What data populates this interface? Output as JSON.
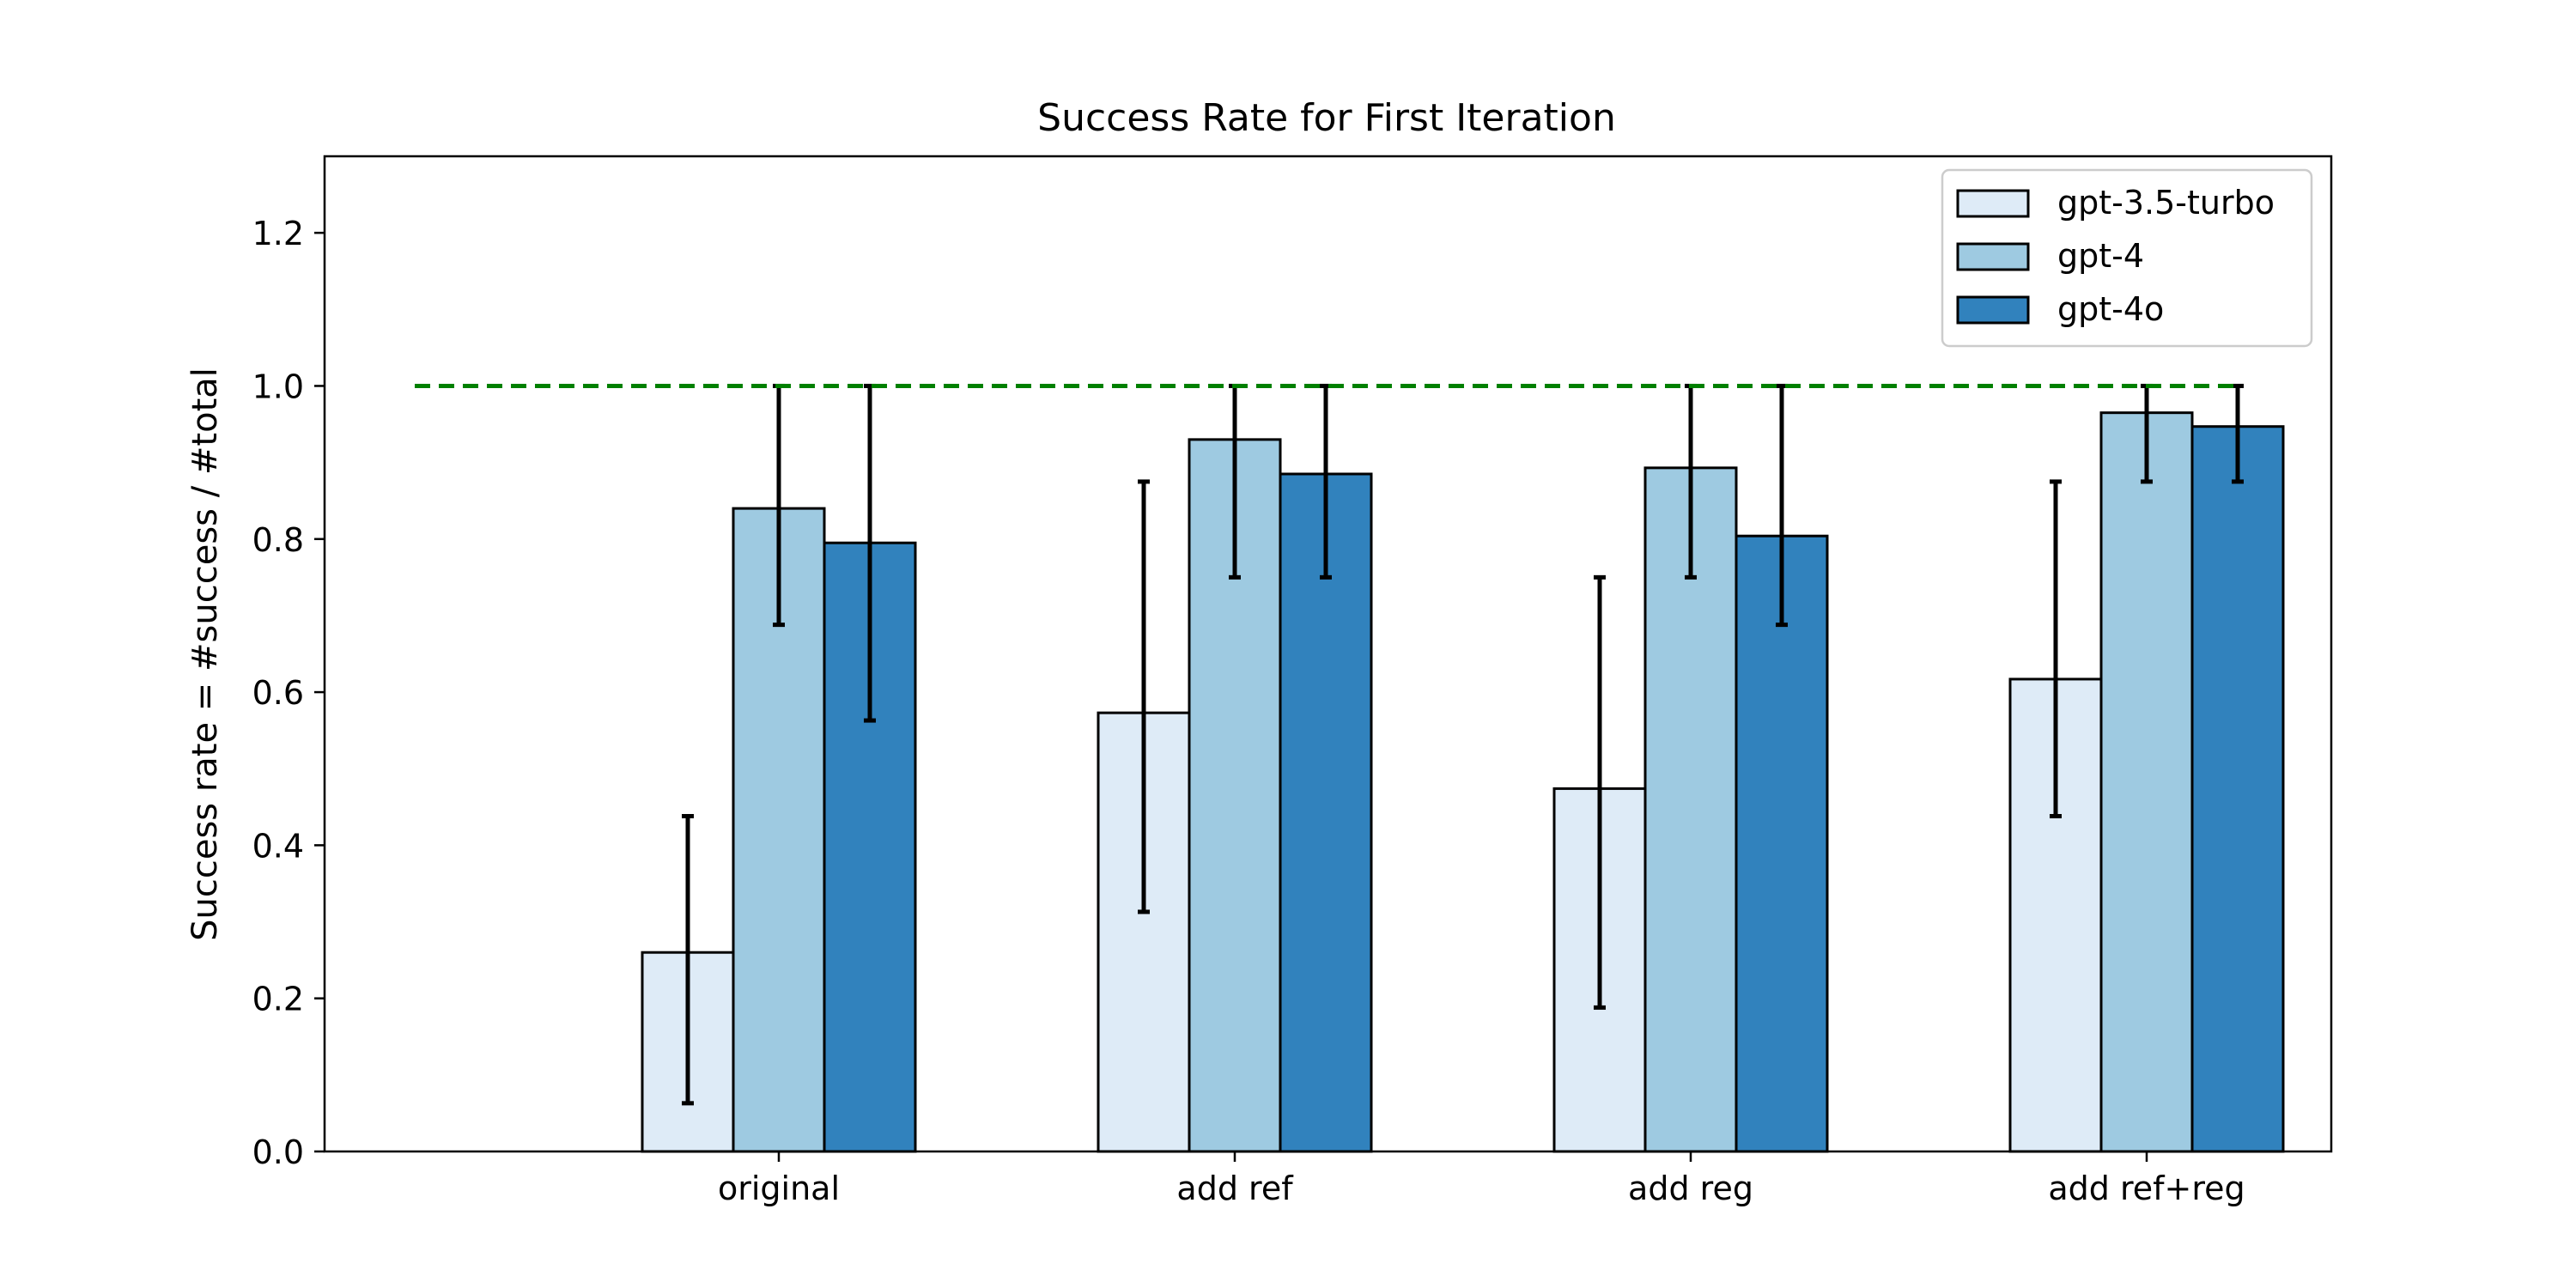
{
  "chart_data": {
    "type": "bar",
    "title": "Success Rate for First Iteration",
    "xlabel": "",
    "ylabel": "Success rate = #success / #total",
    "ylim": [
      0,
      1.3
    ],
    "yticks": [
      "0.0",
      "0.2",
      "0.4",
      "0.6",
      "0.8",
      "1.0",
      "1.2"
    ],
    "categories": [
      "original",
      "add ref",
      "add reg",
      "add ref+reg"
    ],
    "series": [
      {
        "name": "gpt-3.5-turbo",
        "color": "#deebf7",
        "values": [
          0.26,
          0.573,
          0.474,
          0.617
        ],
        "err_low": [
          0.063,
          0.313,
          0.188,
          0.438
        ],
        "err_high": [
          0.438,
          0.875,
          0.75,
          0.875
        ]
      },
      {
        "name": "gpt-4",
        "color": "#9ecae1",
        "values": [
          0.84,
          0.93,
          0.893,
          0.965
        ],
        "err_low": [
          0.688,
          0.75,
          0.75,
          0.875
        ],
        "err_high": [
          1.0,
          1.0,
          1.0,
          1.0
        ]
      },
      {
        "name": "gpt-4o",
        "color": "#3182bd",
        "values": [
          0.795,
          0.885,
          0.804,
          0.947
        ],
        "err_low": [
          0.563,
          0.75,
          0.688,
          0.875
        ],
        "err_high": [
          1.0,
          1.0,
          1.0,
          1.0
        ]
      }
    ],
    "reference_line": {
      "y": 1.0,
      "color": "#008000",
      "style": "dashed"
    },
    "legend_position": "top-right",
    "grid": false
  }
}
